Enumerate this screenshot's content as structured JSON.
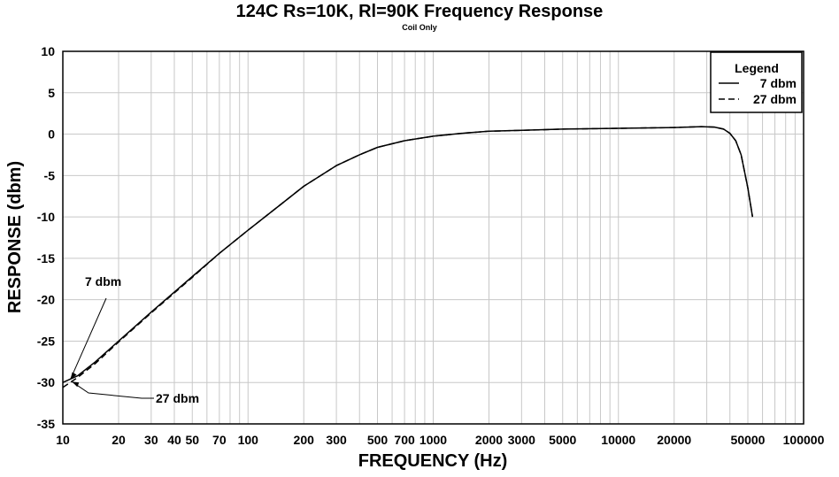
{
  "chart_data": {
    "type": "line",
    "title": "124C Rs=10K, Rl=90K  Frequency Response",
    "subtitle": "Coil Only",
    "xlabel": "FREQUENCY (Hz)",
    "ylabel": "RESPONSE (dbm)",
    "xscale": "log",
    "xlim": [
      10,
      100000
    ],
    "ylim": [
      -35,
      10
    ],
    "grid": true,
    "xticks": [
      10,
      20,
      30,
      40,
      50,
      70,
      100,
      200,
      300,
      500,
      700,
      1000,
      2000,
      3000,
      5000,
      10000,
      20000,
      50000,
      100000
    ],
    "xtick_labels": [
      "10",
      "20",
      "30",
      "40",
      "50",
      "70",
      "100",
      "200",
      "300",
      "500",
      "700",
      "1000",
      "2000",
      "3000",
      "5000",
      "10000",
      "20000",
      "50000",
      "100000"
    ],
    "yticks": [
      10,
      5,
      0,
      -5,
      -10,
      -15,
      -20,
      -25,
      -30,
      -35
    ],
    "ytick_labels": [
      "10",
      "5",
      "0",
      "-5",
      "-10",
      "-15",
      "-20",
      "-25",
      "-30",
      "-35"
    ],
    "legend": {
      "title": "Legend",
      "position": "top-right",
      "entries": [
        {
          "label": "7 dbm",
          "style": "solid"
        },
        {
          "label": "27 dbm",
          "style": "dashed"
        }
      ]
    },
    "series": [
      {
        "name": "7 dbm",
        "style": "solid",
        "x": [
          10,
          12,
          15,
          20,
          30,
          50,
          70,
          100,
          150,
          200,
          300,
          400,
          500,
          700,
          1000,
          1500,
          2000,
          3000,
          5000,
          10000,
          20000,
          28000,
          33000,
          37000,
          40000,
          43000,
          46000,
          50000,
          53000
        ],
        "y": [
          -30,
          -29.2,
          -27.5,
          -25,
          -21.5,
          -17.2,
          -14.4,
          -11.6,
          -8.5,
          -6.3,
          -3.8,
          -2.5,
          -1.6,
          -0.8,
          -0.25,
          0.15,
          0.35,
          0.45,
          0.6,
          0.7,
          0.8,
          0.9,
          0.85,
          0.6,
          0.1,
          -0.8,
          -2.5,
          -6.5,
          -10
        ]
      },
      {
        "name": "27 dbm",
        "style": "dashed",
        "x": [
          10,
          12,
          15,
          20,
          30,
          50,
          70,
          100,
          150,
          200,
          300,
          400,
          500,
          700,
          1000,
          1500,
          2000,
          3000,
          5000,
          10000,
          20000,
          28000,
          33000,
          37000,
          40000,
          43000,
          46000,
          50000,
          53000
        ],
        "y": [
          -30.6,
          -29.4,
          -27.7,
          -25.1,
          -21.6,
          -17.3,
          -14.4,
          -11.6,
          -8.5,
          -6.3,
          -3.8,
          -2.5,
          -1.6,
          -0.8,
          -0.25,
          0.15,
          0.35,
          0.45,
          0.6,
          0.7,
          0.8,
          0.9,
          0.85,
          0.6,
          0.1,
          -0.8,
          -2.5,
          -6.5,
          -10
        ]
      }
    ],
    "annotations": [
      {
        "text": "7 dbm",
        "target_series": "7 dbm",
        "x": 11,
        "y": -29.6
      },
      {
        "text": "27 dbm",
        "target_series": "27 dbm",
        "x": 11.2,
        "y": -29.9
      }
    ]
  }
}
